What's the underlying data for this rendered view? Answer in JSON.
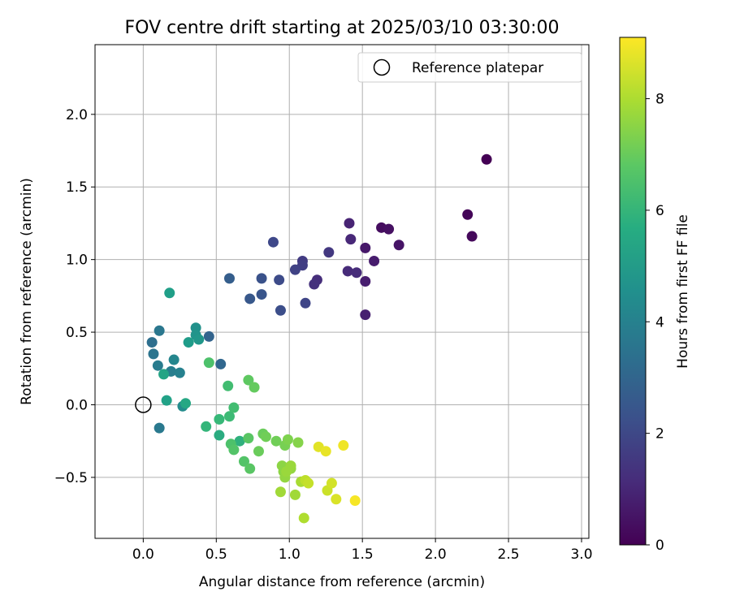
{
  "chart_data": {
    "type": "scatter",
    "title": "FOV centre drift starting at 2025/03/10 03:30:00",
    "xlabel": "Angular distance from reference (arcmin)",
    "ylabel": "Rotation from reference (arcmin)",
    "xlim": [
      -0.33,
      3.05
    ],
    "ylim": [
      -0.92,
      2.48
    ],
    "xticks": [
      "0.0",
      "0.5",
      "1.0",
      "1.5",
      "2.0",
      "2.5",
      "3.0"
    ],
    "xtick_values": [
      0,
      0.5,
      1.0,
      1.5,
      2.0,
      2.5,
      3.0
    ],
    "yticks": [
      "−0.5",
      "0.0",
      "0.5",
      "1.0",
      "1.5",
      "2.0"
    ],
    "ytick_values": [
      -0.5,
      0,
      0.5,
      1.0,
      1.5,
      2.0
    ],
    "grid": true,
    "legend": {
      "placement": "top-right",
      "entries": [
        "Reference platepar"
      ]
    },
    "reference_point": {
      "x": 0.0,
      "y": 0.0,
      "marker": "open-circle"
    },
    "colorbar": {
      "label": "Hours from first FF file",
      "colormap": "viridis",
      "range": [
        0,
        9.1
      ],
      "ticks": [
        "0",
        "2",
        "4",
        "6",
        "8"
      ],
      "tick_values": [
        0,
        2,
        4,
        6,
        8
      ]
    },
    "points": [
      {
        "x": 2.35,
        "y": 1.69,
        "c": 0.0
      },
      {
        "x": 2.22,
        "y": 1.31,
        "c": 0.1
      },
      {
        "x": 2.25,
        "y": 1.16,
        "c": 0.2
      },
      {
        "x": 1.63,
        "y": 1.22,
        "c": 0.3
      },
      {
        "x": 1.68,
        "y": 1.21,
        "c": 0.4
      },
      {
        "x": 1.75,
        "y": 1.1,
        "c": 0.5
      },
      {
        "x": 1.52,
        "y": 1.08,
        "c": 0.6
      },
      {
        "x": 1.58,
        "y": 0.99,
        "c": 0.7
      },
      {
        "x": 1.52,
        "y": 0.85,
        "c": 0.75
      },
      {
        "x": 1.52,
        "y": 0.62,
        "c": 0.8
      },
      {
        "x": 1.41,
        "y": 1.25,
        "c": 0.9
      },
      {
        "x": 1.42,
        "y": 1.14,
        "c": 1.0
      },
      {
        "x": 1.4,
        "y": 0.92,
        "c": 1.1
      },
      {
        "x": 1.46,
        "y": 0.91,
        "c": 1.15
      },
      {
        "x": 1.19,
        "y": 0.86,
        "c": 1.2
      },
      {
        "x": 1.17,
        "y": 0.83,
        "c": 1.3
      },
      {
        "x": 1.27,
        "y": 1.05,
        "c": 1.5
      },
      {
        "x": 1.09,
        "y": 0.99,
        "c": 1.6
      },
      {
        "x": 1.09,
        "y": 0.96,
        "c": 1.7
      },
      {
        "x": 1.04,
        "y": 0.93,
        "c": 1.8
      },
      {
        "x": 1.11,
        "y": 0.7,
        "c": 1.9
      },
      {
        "x": 0.89,
        "y": 1.12,
        "c": 2.0
      },
      {
        "x": 0.93,
        "y": 0.86,
        "c": 2.1
      },
      {
        "x": 0.94,
        "y": 0.65,
        "c": 2.2
      },
      {
        "x": 0.81,
        "y": 0.87,
        "c": 2.3
      },
      {
        "x": 0.81,
        "y": 0.76,
        "c": 2.4
      },
      {
        "x": 0.73,
        "y": 0.73,
        "c": 2.5
      },
      {
        "x": 0.59,
        "y": 0.87,
        "c": 2.7
      },
      {
        "x": 0.45,
        "y": 0.47,
        "c": 2.9
      },
      {
        "x": 0.53,
        "y": 0.28,
        "c": 3.0
      },
      {
        "x": 0.06,
        "y": 0.43,
        "c": 3.3
      },
      {
        "x": 0.07,
        "y": 0.35,
        "c": 3.5
      },
      {
        "x": 0.11,
        "y": 0.51,
        "c": 3.6
      },
      {
        "x": 0.11,
        "y": -0.16,
        "c": 3.7
      },
      {
        "x": 0.1,
        "y": 0.27,
        "c": 3.8
      },
      {
        "x": 0.19,
        "y": 0.23,
        "c": 3.9
      },
      {
        "x": 0.25,
        "y": 0.22,
        "c": 4.0
      },
      {
        "x": 0.21,
        "y": 0.31,
        "c": 4.2
      },
      {
        "x": 0.27,
        "y": -0.01,
        "c": 4.4
      },
      {
        "x": 0.36,
        "y": 0.53,
        "c": 4.6
      },
      {
        "x": 0.36,
        "y": 0.48,
        "c": 4.7
      },
      {
        "x": 0.38,
        "y": 0.45,
        "c": 4.8
      },
      {
        "x": 0.31,
        "y": 0.43,
        "c": 5.0
      },
      {
        "x": 0.18,
        "y": 0.77,
        "c": 5.1
      },
      {
        "x": 0.16,
        "y": 0.03,
        "c": 5.2
      },
      {
        "x": 0.14,
        "y": 0.21,
        "c": 5.3
      },
      {
        "x": 0.29,
        "y": 0.01,
        "c": 5.4
      },
      {
        "x": 0.52,
        "y": -0.21,
        "c": 5.6
      },
      {
        "x": 0.66,
        "y": -0.25,
        "c": 5.8
      },
      {
        "x": 0.43,
        "y": -0.15,
        "c": 6.0
      },
      {
        "x": 0.52,
        "y": -0.1,
        "c": 6.1
      },
      {
        "x": 0.59,
        "y": -0.08,
        "c": 6.2
      },
      {
        "x": 0.62,
        "y": -0.02,
        "c": 6.3
      },
      {
        "x": 0.58,
        "y": 0.13,
        "c": 6.3
      },
      {
        "x": 0.45,
        "y": 0.29,
        "c": 6.5
      },
      {
        "x": 0.6,
        "y": -0.27,
        "c": 6.5
      },
      {
        "x": 0.62,
        "y": -0.31,
        "c": 6.6
      },
      {
        "x": 0.69,
        "y": -0.39,
        "c": 6.6
      },
      {
        "x": 0.73,
        "y": -0.44,
        "c": 6.7
      },
      {
        "x": 0.72,
        "y": -0.23,
        "c": 6.7
      },
      {
        "x": 0.72,
        "y": 0.17,
        "c": 6.8
      },
      {
        "x": 0.76,
        "y": 0.12,
        "c": 6.9
      },
      {
        "x": 0.79,
        "y": -0.32,
        "c": 7.0
      },
      {
        "x": 0.82,
        "y": -0.2,
        "c": 7.0
      },
      {
        "x": 0.84,
        "y": -0.22,
        "c": 7.1
      },
      {
        "x": 0.91,
        "y": -0.25,
        "c": 7.1
      },
      {
        "x": 0.97,
        "y": -0.28,
        "c": 7.2
      },
      {
        "x": 0.99,
        "y": -0.24,
        "c": 7.3
      },
      {
        "x": 1.06,
        "y": -0.26,
        "c": 7.4
      },
      {
        "x": 0.95,
        "y": -0.42,
        "c": 7.5
      },
      {
        "x": 0.96,
        "y": -0.46,
        "c": 7.5
      },
      {
        "x": 0.97,
        "y": -0.5,
        "c": 7.6
      },
      {
        "x": 1.01,
        "y": -0.44,
        "c": 7.6
      },
      {
        "x": 0.98,
        "y": -0.46,
        "c": 7.7
      },
      {
        "x": 1.01,
        "y": -0.42,
        "c": 7.7
      },
      {
        "x": 0.94,
        "y": -0.6,
        "c": 7.8
      },
      {
        "x": 1.04,
        "y": -0.62,
        "c": 7.8
      },
      {
        "x": 1.08,
        "y": -0.53,
        "c": 7.9
      },
      {
        "x": 1.1,
        "y": -0.78,
        "c": 8.0
      },
      {
        "x": 1.11,
        "y": -0.52,
        "c": 8.2
      },
      {
        "x": 1.13,
        "y": -0.54,
        "c": 8.3
      },
      {
        "x": 1.26,
        "y": -0.59,
        "c": 8.4
      },
      {
        "x": 1.29,
        "y": -0.54,
        "c": 8.5
      },
      {
        "x": 1.32,
        "y": -0.65,
        "c": 8.6
      },
      {
        "x": 1.2,
        "y": -0.29,
        "c": 8.7
      },
      {
        "x": 1.25,
        "y": -0.32,
        "c": 8.8
      },
      {
        "x": 1.37,
        "y": -0.28,
        "c": 8.9
      },
      {
        "x": 1.45,
        "y": -0.66,
        "c": 9.0
      }
    ]
  }
}
